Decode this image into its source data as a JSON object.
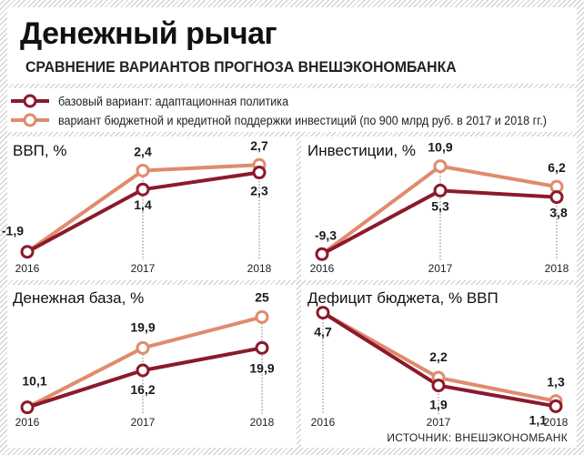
{
  "header": {
    "title": "Денежный рычаг",
    "subtitle": "СРАВНЕНИЕ ВАРИАНТОВ ПРОГНОЗА ВНЕШЭКОНОМБАНКА"
  },
  "legend": [
    {
      "label": "базовый вариант: адаптационная политика",
      "color": "#8b1a2b"
    },
    {
      "label": "вариант бюджетной и кредитной поддержки инвестиций (по 900 млрд руб. в 2017 и 2018 гг.)",
      "color": "#e08b6e"
    }
  ],
  "colors": {
    "base": "#8b1a2b",
    "support": "#e08b6e"
  },
  "source": "ИСТОЧНИК: ВНЕШЭКОНОМБАНК",
  "chart_data": [
    {
      "type": "line",
      "title": "ВВП, %",
      "categories": [
        "2016",
        "2017",
        "2018"
      ],
      "ylim": [
        -2.3,
        3.0
      ],
      "series": [
        {
          "name": "базовый вариант: адаптационная политика",
          "values": [
            -1.9,
            1.4,
            2.3
          ],
          "labels": [
            "-1,9",
            "1,4",
            "2,3"
          ]
        },
        {
          "name": "вариант бюджетной и кредитной поддержки инвестиций (по 900 млрд руб. в 2017 и 2018 гг.)",
          "values": [
            -1.9,
            2.4,
            2.7
          ],
          "labels": [
            "",
            "2,4",
            "2,7"
          ]
        }
      ]
    },
    {
      "type": "line",
      "title": "Инвестиции, %",
      "categories": [
        "2016",
        "2017",
        "2018"
      ],
      "ylim": [
        -10.5,
        12.5
      ],
      "series": [
        {
          "name": "базовый вариант: адаптационная политика",
          "values": [
            -9.3,
            5.3,
            3.8
          ],
          "labels": [
            "-9,3",
            "5,3",
            "3,8"
          ]
        },
        {
          "name": "вариант бюджетной и кредитной поддержки инвестиций (по 900 млрд руб. в 2017 и 2018 гг.)",
          "values": [
            -9.3,
            10.9,
            6.2
          ],
          "labels": [
            "",
            "10,9",
            "6,2"
          ]
        }
      ]
    },
    {
      "type": "line",
      "title": "Денежная база, %",
      "categories": [
        "2016",
        "2017",
        "2018"
      ],
      "ylim": [
        9.0,
        27.0
      ],
      "series": [
        {
          "name": "базовый вариант: адаптационная политика",
          "values": [
            10.1,
            16.2,
            19.9
          ],
          "labels": [
            "10,1",
            "16,2",
            "19,9"
          ]
        },
        {
          "name": "вариант бюджетной и кредитной поддержки инвестиций (по 900 млрд руб. в 2017 и 2018 гг.)",
          "values": [
            10.1,
            19.9,
            25
          ],
          "labels": [
            "",
            "19,9",
            "25"
          ]
        }
      ]
    },
    {
      "type": "line",
      "title": "Дефицит бюджета, % ВВП",
      "categories": [
        "2016",
        "2017",
        "2018"
      ],
      "ylim": [
        0.8,
        5.0
      ],
      "series": [
        {
          "name": "базовый вариант: адаптационная политика",
          "values": [
            4.7,
            1.9,
            1.1
          ],
          "labels": [
            "4,7",
            "1,9",
            "1,1"
          ]
        },
        {
          "name": "вариант бюджетной и кредитной поддержки инвестиций (по 900 млрд руб. в 2017 и 2018 гг.)",
          "values": [
            4.7,
            2.2,
            1.3
          ],
          "labels": [
            "",
            "2,2",
            "1,3"
          ]
        }
      ]
    }
  ]
}
